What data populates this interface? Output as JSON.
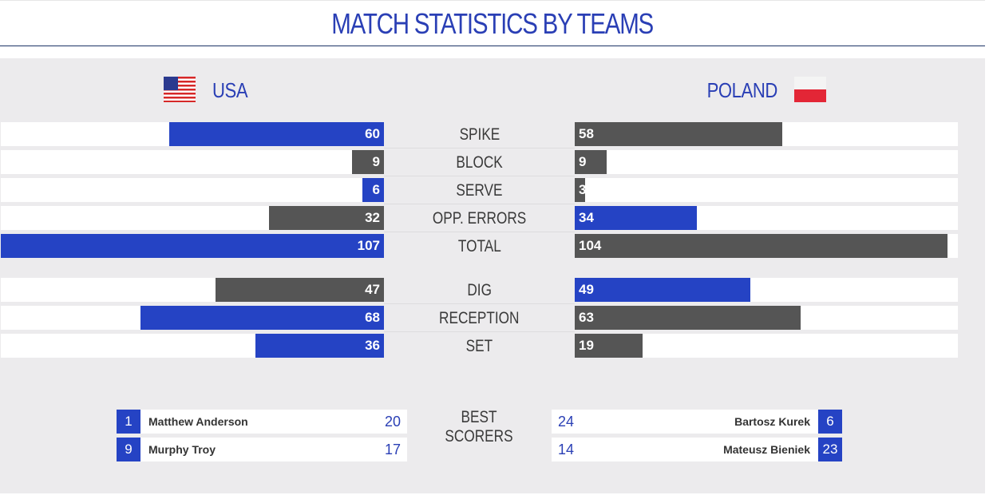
{
  "title": "MATCH STATISTICS BY TEAMS",
  "teams": {
    "left": {
      "name": "USA",
      "flag": "usa-flag-icon"
    },
    "right": {
      "name": "POLAND",
      "flag": "poland-flag-icon"
    }
  },
  "colors": {
    "leader": "#2543c4",
    "trailer": "#555555",
    "accent_text": "#2a3fb5"
  },
  "chart_data": {
    "type": "bar",
    "max": 107,
    "categories": [
      "SPIKE",
      "BLOCK",
      "SERVE",
      "OPP. ERRORS",
      "TOTAL",
      "DIG",
      "RECEPTION",
      "SET"
    ],
    "series": [
      {
        "name": "USA",
        "values": [
          60,
          9,
          6,
          32,
          107,
          47,
          68,
          36
        ]
      },
      {
        "name": "POLAND",
        "values": [
          58,
          9,
          3,
          34,
          104,
          49,
          63,
          19
        ]
      }
    ],
    "leader": [
      "left",
      "gray",
      "left",
      "right",
      "left",
      "right",
      "left",
      "left"
    ]
  },
  "best_scorers": {
    "label": "BEST SCORERS",
    "left": [
      {
        "number": "1",
        "name": "Matthew Anderson",
        "points": "20"
      },
      {
        "number": "9",
        "name": "Murphy Troy",
        "points": "17"
      }
    ],
    "right": [
      {
        "number": "6",
        "name": "Bartosz Kurek",
        "points": "24"
      },
      {
        "number": "23",
        "name": "Mateusz Bieniek",
        "points": "14"
      }
    ]
  }
}
